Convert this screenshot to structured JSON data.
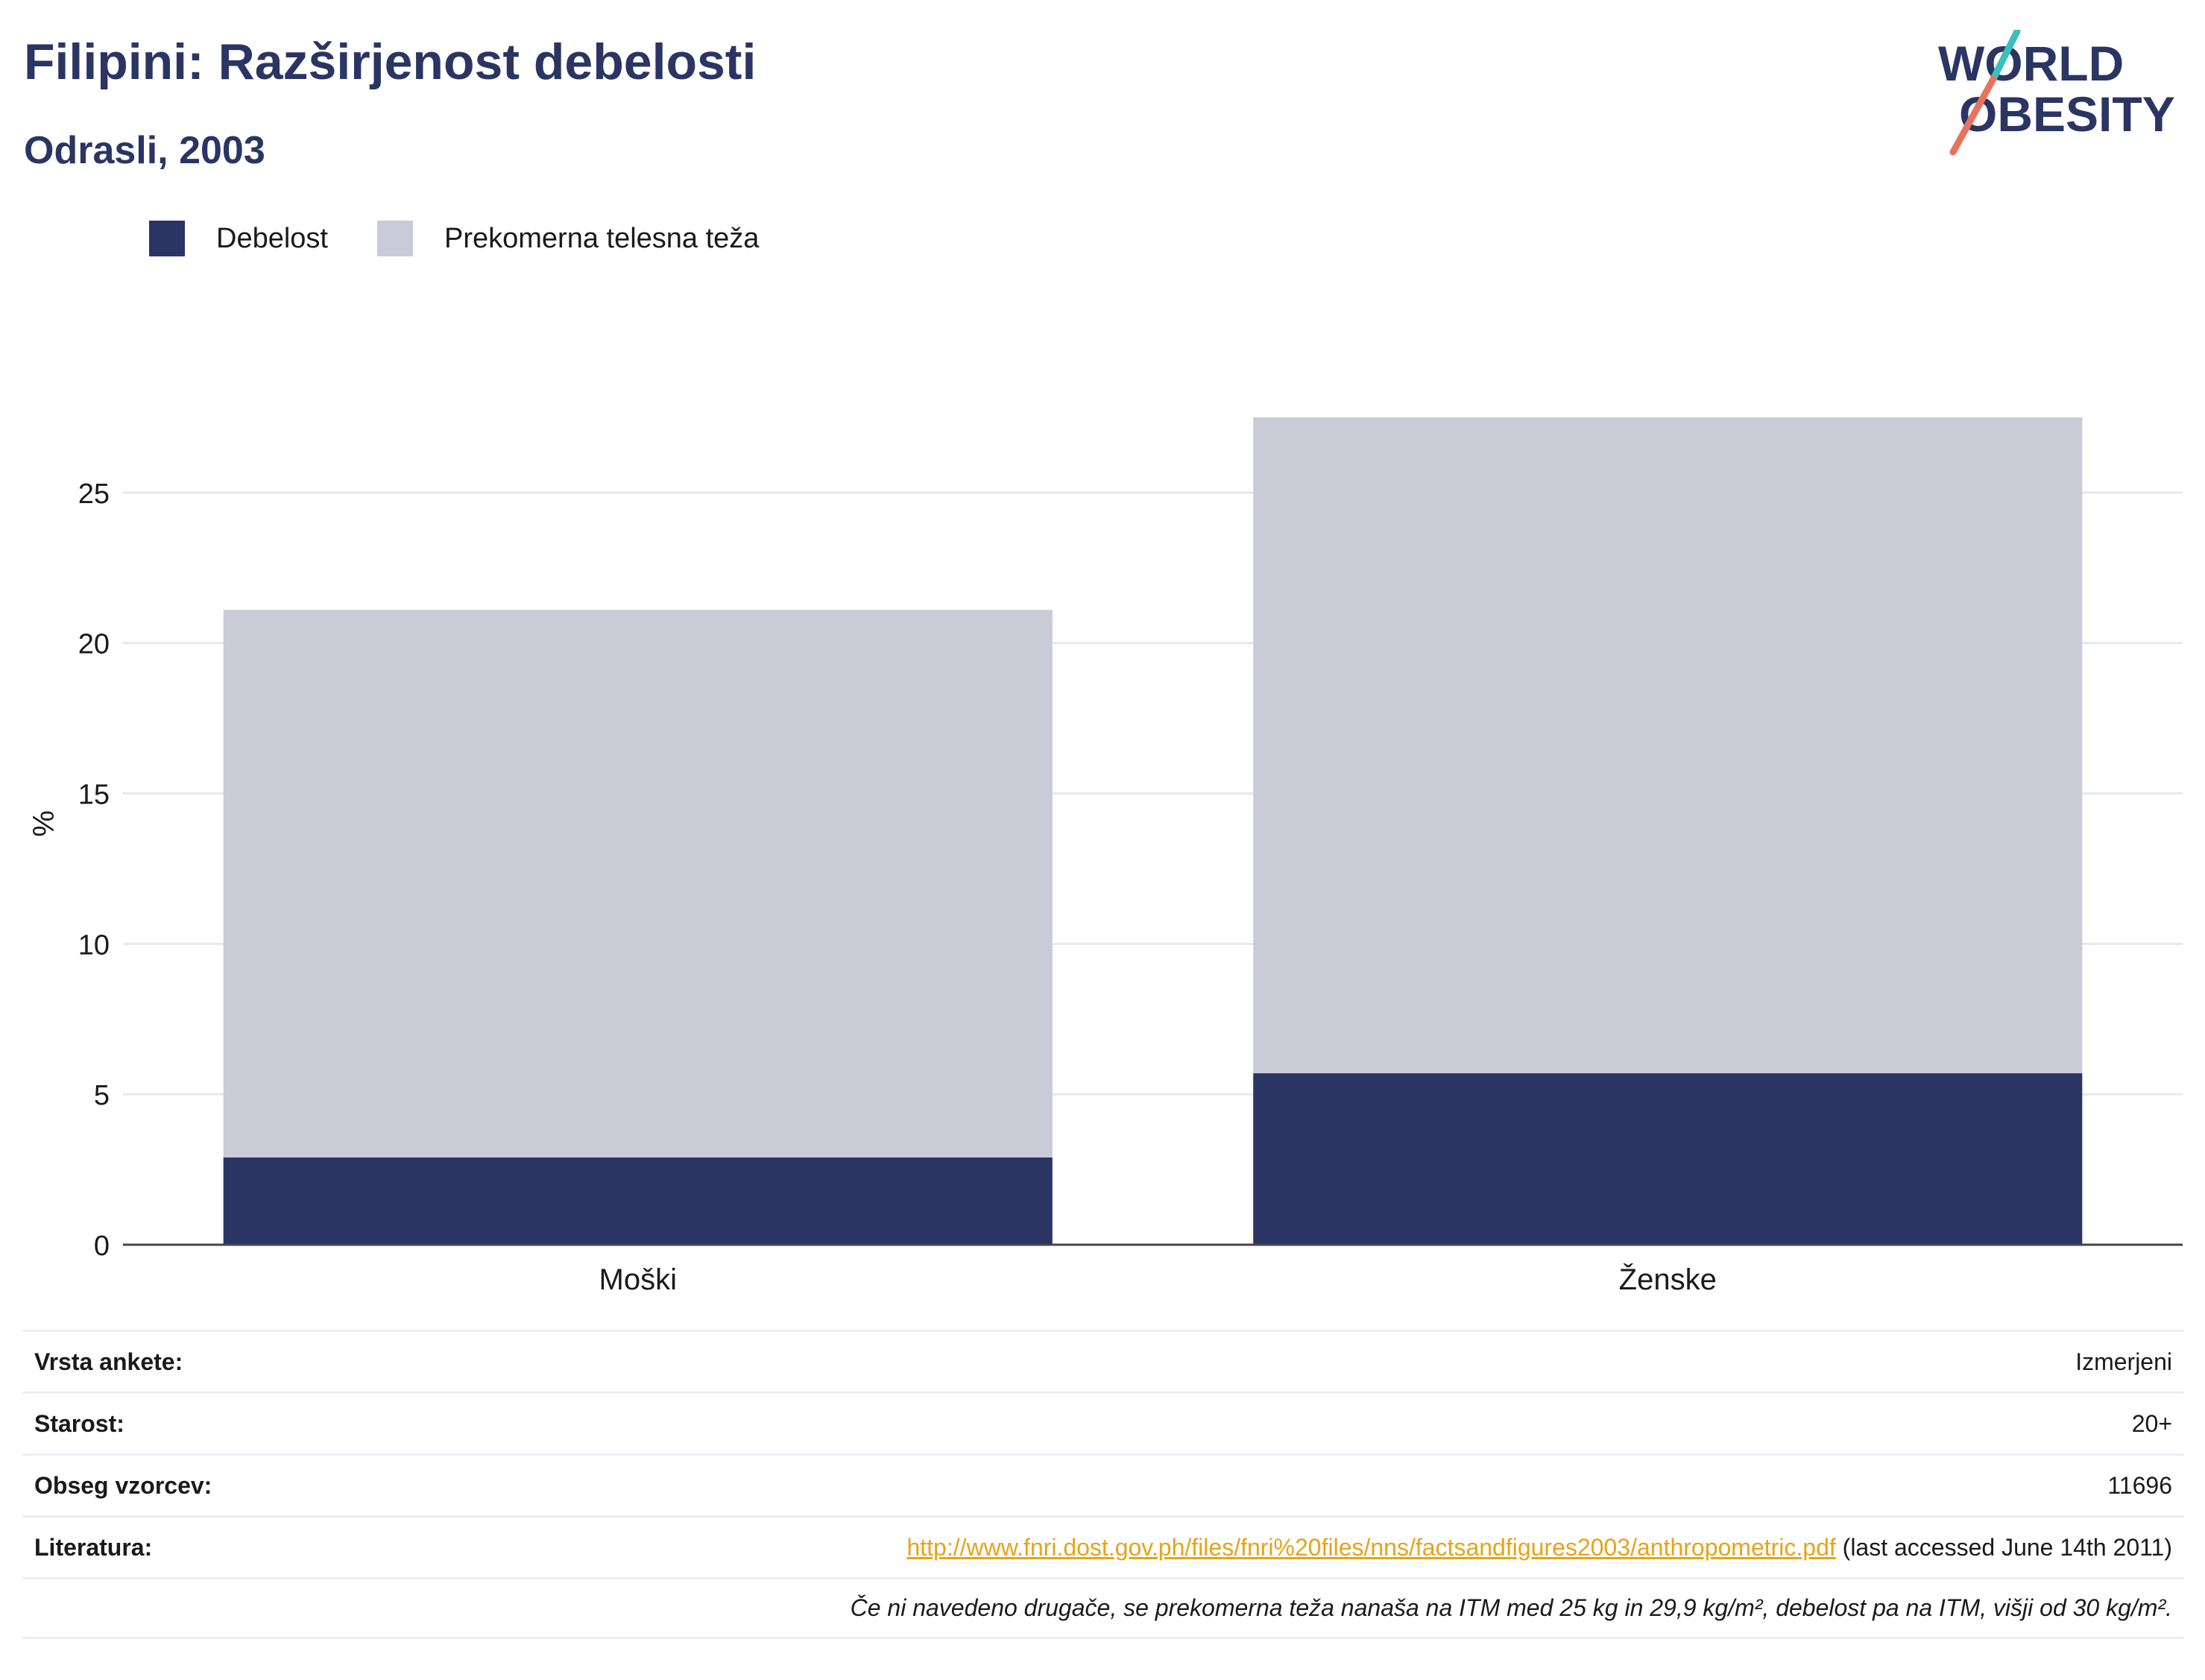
{
  "header": {
    "title": "Filipini: Razširjenost debelosti",
    "subtitle": "Odrasli, 2003"
  },
  "logo": {
    "line1": "WORLD",
    "line2": "OBESITY",
    "icon": "world-obesity-logo"
  },
  "colors": {
    "obesity": "#2a3563",
    "overweight": "#c9cbd7",
    "accent_teal": "#3bbfbf",
    "accent_coral": "#e8735c",
    "link": "#e8a317"
  },
  "chart_data": {
    "type": "bar",
    "stacked": true,
    "categories": [
      "Moški",
      "Ženske"
    ],
    "series": [
      {
        "name": "Debelost",
        "values": [
          2.9,
          5.7
        ]
      },
      {
        "name": "Prekomerna telesna teža",
        "values": [
          18.2,
          21.8
        ]
      }
    ],
    "ylabel": "%",
    "xlabel": "",
    "ylim": [
      0,
      27.5
    ],
    "yticks": [
      0,
      5,
      10,
      15,
      20,
      25
    ],
    "grid": true,
    "legend_position": "top-left"
  },
  "info": [
    {
      "label": "Vrsta ankete:",
      "value": "Izmerjeni"
    },
    {
      "label": "Starost:",
      "value": "20+"
    },
    {
      "label": "Obseg vzorcev:",
      "value": "11696"
    },
    {
      "label": "Literatura:",
      "link": "http://www.fnri.dost.gov.ph/files/fnri%20files/nns/factsandfigures2003/anthropometric.pdf",
      "suffix": " (last accessed June 14th 2011)"
    }
  ],
  "note": "Če ni navedeno drugače, se prekomerna teža nanaša na ITM med 25 kg in 29,9 kg/m², debelost pa na ITM, višji od 30 kg/m²."
}
